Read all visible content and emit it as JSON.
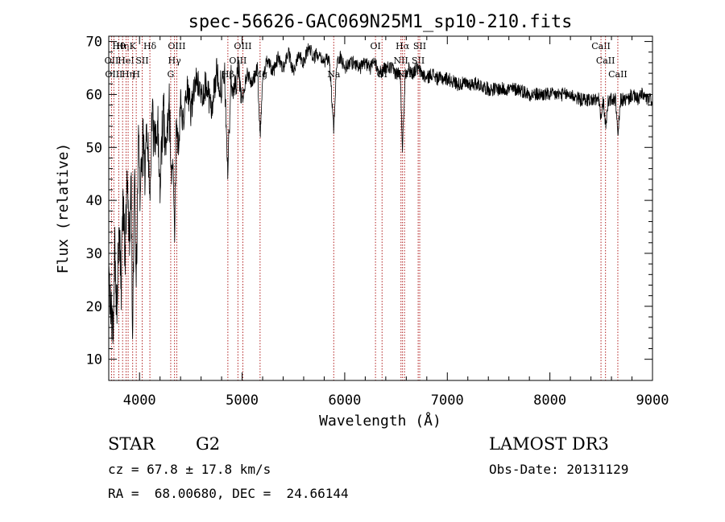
{
  "chart_data": {
    "type": "line",
    "title": "spec-56626-GAC069N25M1_sp10-210.fits",
    "xlabel": "Wavelength (Å)",
    "ylabel": "Flux (relative)",
    "xlim": [
      3700,
      9000
    ],
    "ylim": [
      6,
      71
    ],
    "x_ticks": [
      4000,
      5000,
      6000,
      7000,
      8000,
      9000
    ],
    "y_ticks": [
      10,
      20,
      30,
      40,
      50,
      60,
      70
    ],
    "grid": false,
    "series": [
      {
        "name": "flux",
        "x": [
          3700,
          3720,
          3740,
          3760,
          3780,
          3800,
          3820,
          3840,
          3860,
          3880,
          3900,
          3920,
          3933,
          3950,
          3968,
          3990,
          4010,
          4030,
          4050,
          4070,
          4090,
          4101,
          4120,
          4150,
          4180,
          4200,
          4230,
          4260,
          4290,
          4310,
          4330,
          4341,
          4360,
          4380,
          4400,
          4430,
          4460,
          4500,
          4550,
          4600,
          4650,
          4700,
          4750,
          4800,
          4830,
          4861,
          4890,
          4920,
          4960,
          5000,
          5050,
          5100,
          5150,
          5175,
          5200,
          5250,
          5300,
          5350,
          5400,
          5450,
          5500,
          5550,
          5600,
          5650,
          5700,
          5750,
          5800,
          5850,
          5893,
          5920,
          5960,
          6000,
          6050,
          6100,
          6150,
          6200,
          6250,
          6300,
          6350,
          6400,
          6450,
          6500,
          6540,
          6563,
          6590,
          6620,
          6660,
          6700,
          6750,
          6800,
          6850,
          6900,
          6950,
          7000,
          7100,
          7200,
          7300,
          7400,
          7500,
          7600,
          7700,
          7800,
          7900,
          8000,
          8100,
          8200,
          8300,
          8400,
          8480,
          8498,
          8520,
          8542,
          8570,
          8600,
          8640,
          8662,
          8690,
          8720,
          8760,
          8800,
          8850,
          8900,
          8950,
          9000
        ],
        "values": [
          25,
          20,
          14,
          30,
          18,
          38,
          22,
          40,
          30,
          44,
          33,
          42,
          12,
          45,
          25,
          50,
          40,
          52,
          45,
          53,
          48,
          42,
          56,
          50,
          54,
          44,
          57,
          50,
          58,
          45,
          46,
          33,
          55,
          49,
          58,
          54,
          61,
          57,
          63,
          60,
          62,
          57,
          64,
          61,
          63,
          45,
          63,
          60,
          65,
          59,
          64,
          62,
          65,
          52,
          63,
          67,
          64,
          67,
          65,
          68,
          64,
          68,
          66,
          69,
          67,
          68,
          66,
          67,
          53,
          66,
          67,
          65,
          66,
          66,
          65,
          66,
          65,
          66,
          64,
          65,
          65,
          64,
          64,
          50,
          64,
          65,
          64,
          65,
          64,
          63,
          64,
          63,
          63,
          63,
          62,
          62,
          62,
          61,
          61,
          61,
          61,
          60,
          60,
          60,
          60,
          60,
          59,
          59,
          59,
          55,
          59,
          54,
          59,
          59,
          59,
          52,
          59,
          59,
          59,
          60,
          59,
          60,
          59,
          59
        ]
      }
    ],
    "lines": [
      {
        "x": 3727,
        "row": 1,
        "label": "OII"
      },
      {
        "x": 3750,
        "row": 2,
        "label": "OIII"
      },
      {
        "x": 3798,
        "row": 0,
        "label": "Hθ"
      },
      {
        "x": 3835,
        "row": 0,
        "label": "Hη"
      },
      {
        "x": 3869,
        "row": 1,
        "label": "HeI"
      },
      {
        "x": 3889,
        "row": 2,
        "label": "Hη"
      },
      {
        "x": 3933,
        "row": 0,
        "label": "K"
      },
      {
        "x": 3968,
        "row": 2,
        "label": "H"
      },
      {
        "x": 4026,
        "row": 1,
        "label": "SII"
      },
      {
        "x": 4101,
        "row": 0,
        "label": "Hδ"
      },
      {
        "x": 4304,
        "row": 2,
        "label": "G"
      },
      {
        "x": 4341,
        "row": 1,
        "label": "Hγ"
      },
      {
        "x": 4363,
        "row": 0,
        "label": "OIII"
      },
      {
        "x": 4861,
        "row": 2,
        "label": "Hβ"
      },
      {
        "x": 4959,
        "row": 1,
        "label": "OIII"
      },
      {
        "x": 5007,
        "row": 0,
        "label": "OIII"
      },
      {
        "x": 5175,
        "row": 2,
        "label": "Mg"
      },
      {
        "x": 5893,
        "row": 2,
        "label": "Na"
      },
      {
        "x": 6300,
        "row": 0,
        "label": "OI"
      },
      {
        "x": 6364,
        "row": 2,
        "label": "OI"
      },
      {
        "x": 6548,
        "row": 1,
        "label": "NII"
      },
      {
        "x": 6563,
        "row": 0,
        "label": "Hα"
      },
      {
        "x": 6583,
        "row": 2,
        "label": "NII"
      },
      {
        "x": 6716,
        "row": 1,
        "label": "SII"
      },
      {
        "x": 6731,
        "row": 0,
        "label": "SII"
      },
      {
        "x": 8498,
        "row": 0,
        "label": "CaII"
      },
      {
        "x": 8542,
        "row": 1,
        "label": "CaII"
      },
      {
        "x": 8662,
        "row": 2,
        "label": "CaII"
      }
    ]
  },
  "info": {
    "class": "STAR",
    "subclass": "G2",
    "survey": "LAMOST DR3",
    "cz": "cz = 67.8 ± 17.8 km/s",
    "obs_date": "Obs-Date: 20131129",
    "coords": "RA =  68.00680, DEC =  24.66144"
  }
}
